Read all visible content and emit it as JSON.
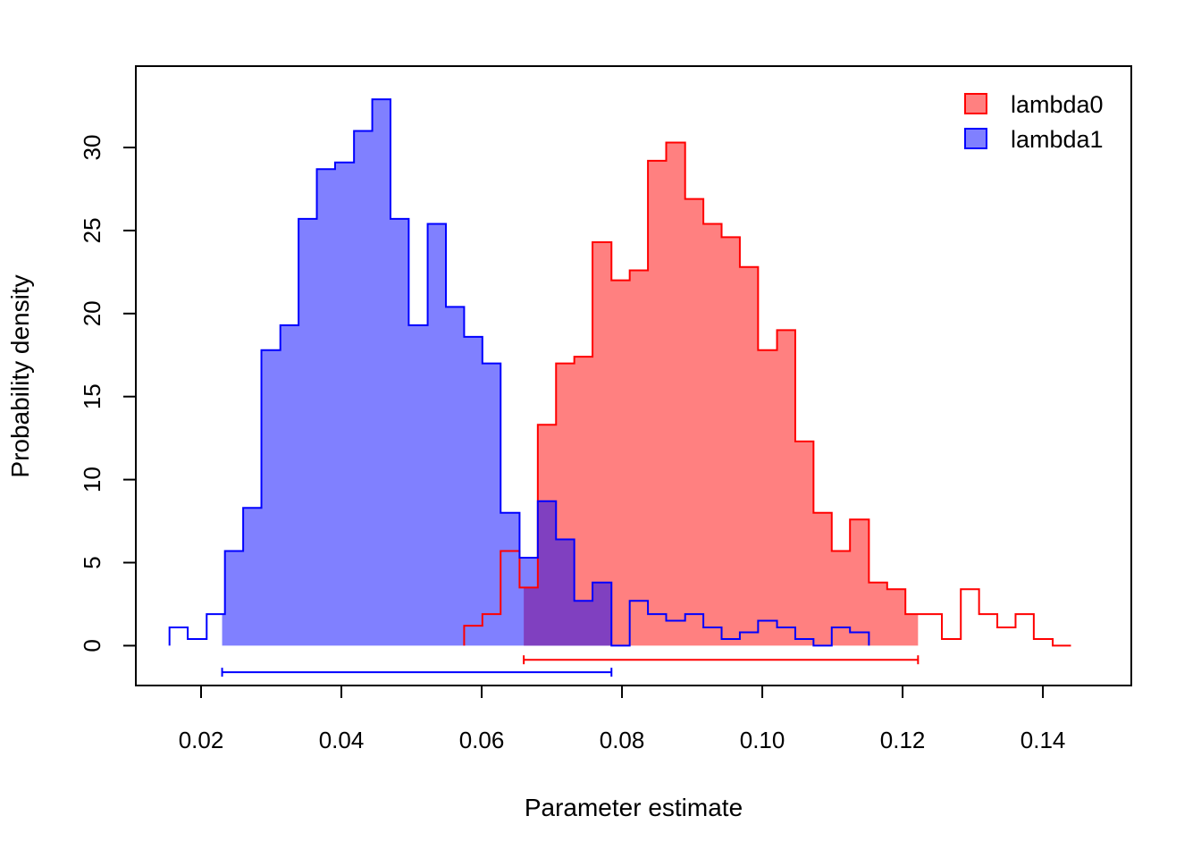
{
  "chart_data": {
    "type": "histogram",
    "title": "",
    "xlabel": "Parameter estimate",
    "ylabel": "Probability density",
    "xlim": [
      0.0107,
      0.1526
    ],
    "ylim": [
      -2.4,
      34.9
    ],
    "x_ticks": [
      0.02,
      0.04,
      0.06,
      0.08,
      0.1,
      0.12,
      0.14
    ],
    "x_tick_labels": [
      "0.02",
      "0.04",
      "0.06",
      "0.08",
      "0.10",
      "0.12",
      "0.14"
    ],
    "y_ticks": [
      0,
      5,
      10,
      15,
      20,
      25,
      30
    ],
    "y_tick_labels": [
      "0",
      "5",
      "10",
      "15",
      "20",
      "25",
      "30"
    ],
    "grid": false,
    "legend_position": "top-right",
    "series": [
      {
        "name": "lambda0",
        "color": "#ff0000",
        "fill_color": "#ff8080",
        "bin_edges": [
          0.0575,
          0.0601,
          0.0627,
          0.0654,
          0.068,
          0.0706,
          0.0732,
          0.0758,
          0.0785,
          0.0811,
          0.0837,
          0.0863,
          0.089,
          0.0916,
          0.0942,
          0.0968,
          0.0994,
          0.1021,
          0.1047,
          0.1073,
          0.1099,
          0.1125,
          0.1152,
          0.1178,
          0.1204,
          0.123,
          0.1256,
          0.1283,
          0.1309,
          0.1335,
          0.1361,
          0.1387,
          0.1414,
          0.144
        ],
        "density": [
          1.2,
          1.9,
          5.7,
          3.5,
          13.3,
          17.0,
          17.4,
          24.3,
          22.0,
          22.6,
          29.2,
          30.3,
          26.9,
          25.4,
          24.6,
          22.8,
          17.8,
          19.0,
          12.3,
          8.0,
          5.7,
          7.6,
          3.8,
          3.4,
          1.9,
          1.9,
          0.4,
          3.4,
          1.9,
          1.1,
          1.9,
          0.4,
          0.0
        ],
        "credible_interval": [
          0.066,
          0.1222
        ],
        "shaded_interval": [
          0.066,
          0.1222
        ]
      },
      {
        "name": "lambda1",
        "color": "#0000ff",
        "fill_color": "#8080ff",
        "bin_edges": [
          0.0155,
          0.0181,
          0.0208,
          0.0234,
          0.026,
          0.0286,
          0.0313,
          0.0339,
          0.0365,
          0.0391,
          0.0418,
          0.0444,
          0.047,
          0.0496,
          0.0523,
          0.0549,
          0.0575,
          0.0601,
          0.0627,
          0.0654,
          0.068,
          0.0706,
          0.0732,
          0.0758,
          0.0785,
          0.0811,
          0.0837,
          0.0863,
          0.089,
          0.0916,
          0.0942,
          0.0968,
          0.0994,
          0.1021,
          0.1047,
          0.1073,
          0.1099,
          0.1125,
          0.1152
        ],
        "density": [
          1.1,
          0.4,
          1.9,
          5.7,
          8.3,
          17.8,
          19.3,
          25.7,
          28.7,
          29.1,
          31.0,
          32.9,
          25.7,
          19.3,
          25.4,
          20.4,
          18.6,
          17.0,
          8.0,
          5.3,
          8.7,
          6.4,
          2.7,
          3.8,
          0.0,
          2.7,
          1.9,
          1.5,
          1.9,
          1.1,
          0.4,
          0.8,
          1.5,
          1.1,
          0.4,
          0.0,
          1.1,
          0.8
        ],
        "credible_interval": [
          0.023,
          0.0785
        ],
        "shaded_interval": [
          0.023,
          0.0785
        ]
      }
    ],
    "overlap_fill_color": "#8040c0"
  }
}
